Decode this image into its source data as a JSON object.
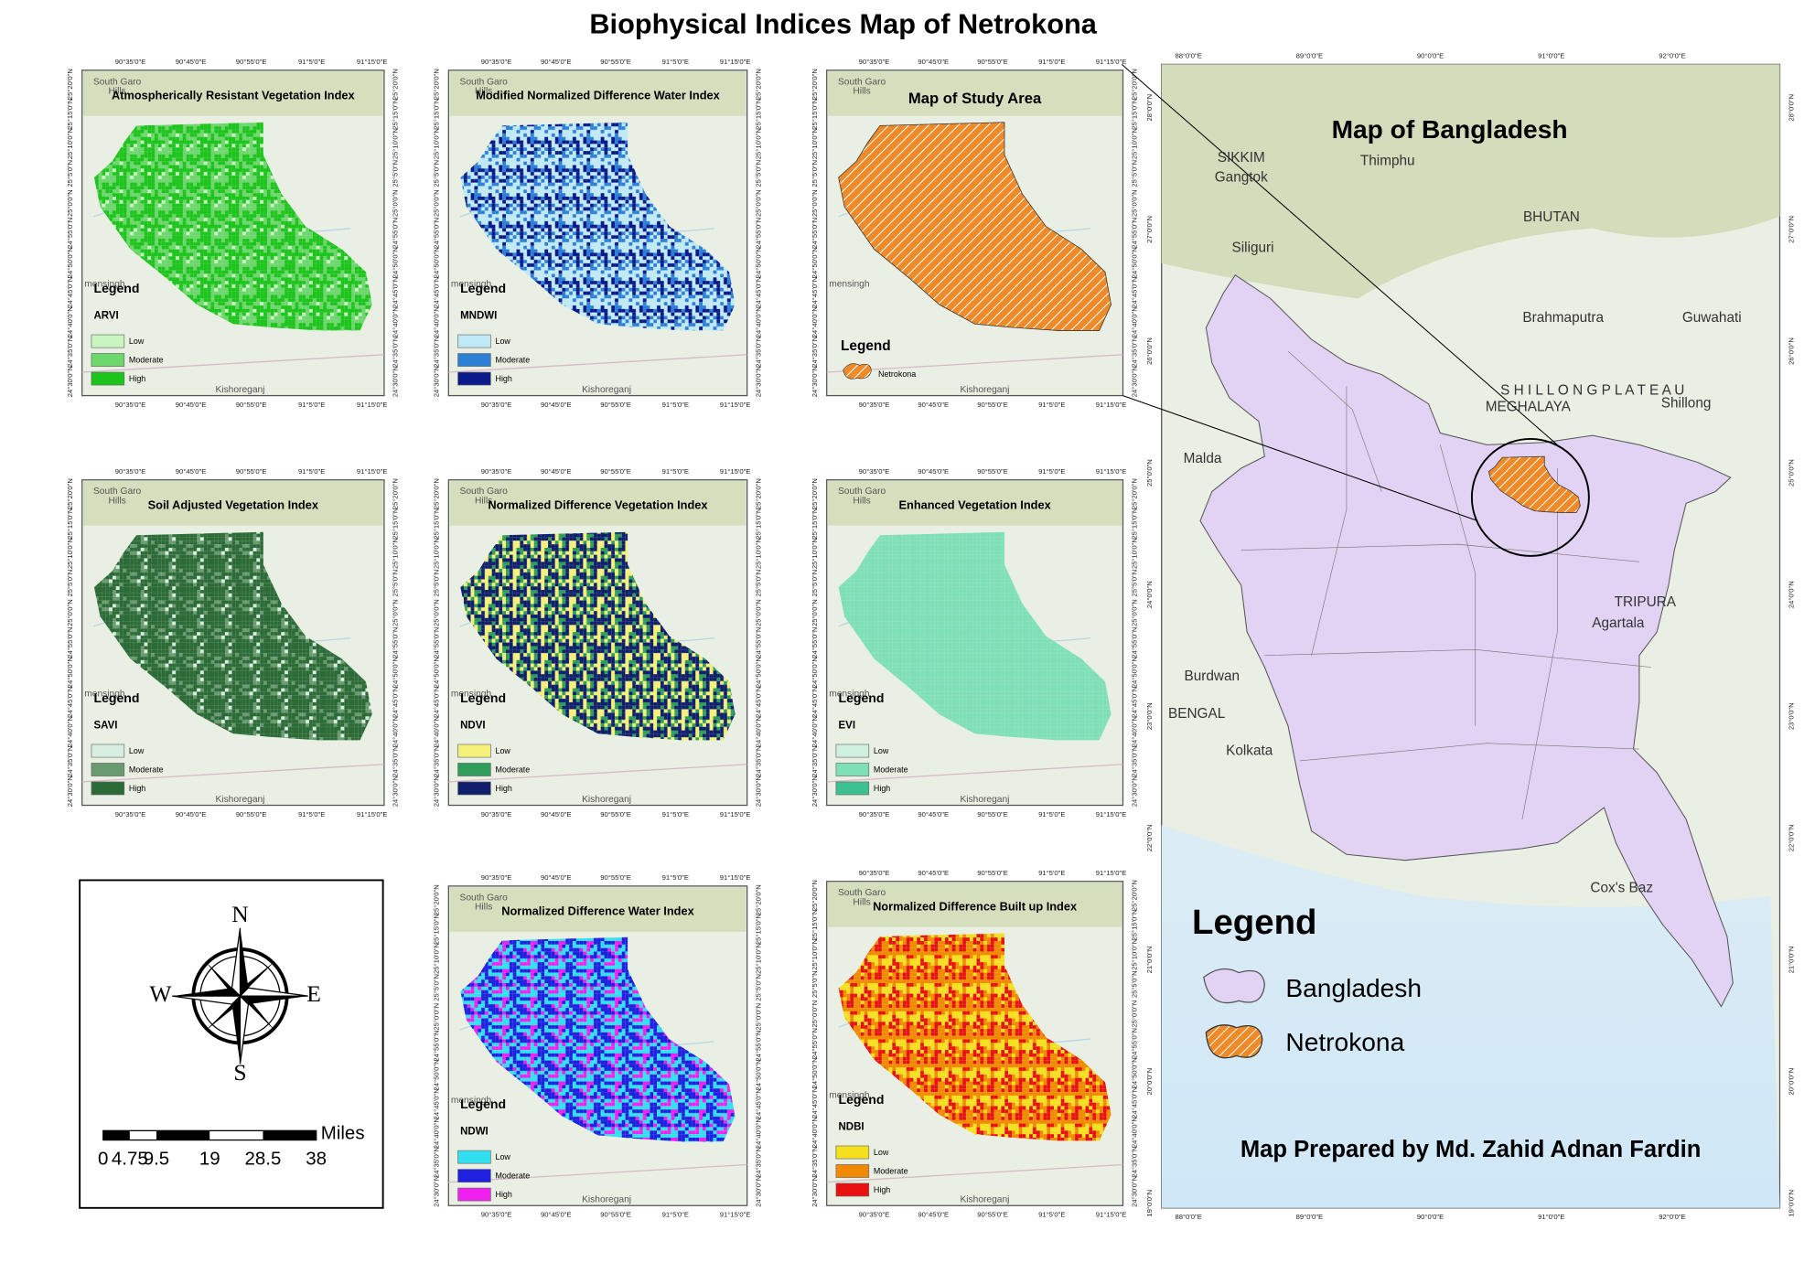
{
  "title": "Biophysical Indices Map of Netrokona",
  "panel_lon_labels": [
    "90°35'0\"E",
    "90°45'0\"E",
    "90°55'0\"E",
    "91°5'0\"E",
    "91°15'0\"E"
  ],
  "panel_lat_labels": [
    "25°20'0\"N",
    "25°15'0\"N",
    "25°10'0\"N",
    "25°5'0\"N",
    "25°0'0\"N",
    "24°55'0\"N",
    "24°50'0\"N",
    "24°45'0\"N",
    "24°40'0\"N",
    "24°35'0\"N",
    "24°30'0\"N"
  ],
  "panel_places": [
    "South Garo",
    "Hills",
    "mensingh",
    "Kishoreganj"
  ],
  "legend_title": "Legend",
  "panels": [
    {
      "title": "Atmospherically Resistant Vegetation Index",
      "index": "ARVI",
      "classes": [
        {
          "label": "Low",
          "color": "#c8f5c0"
        },
        {
          "label": "Moderate",
          "color": "#6dd66d"
        },
        {
          "label": "High",
          "color": "#1cc41c"
        }
      ]
    },
    {
      "title": "Modified Normalized Difference Water Index",
      "index": "MNDWI",
      "classes": [
        {
          "label": "Low",
          "color": "#bfe9f5"
        },
        {
          "label": "Moderate",
          "color": "#2e7fd6"
        },
        {
          "label": "High",
          "color": "#0a1a8a"
        }
      ]
    },
    {
      "title": "Soil Adjusted Vegetation Index",
      "index": "SAVI",
      "classes": [
        {
          "label": "Low",
          "color": "#d8eee0"
        },
        {
          "label": "Moderate",
          "color": "#6a9a70"
        },
        {
          "label": "High",
          "color": "#2c6b38"
        }
      ]
    },
    {
      "title": "Normalized Difference Vegetation Index",
      "index": "NDVI",
      "classes": [
        {
          "label": "Low",
          "color": "#f5f07a"
        },
        {
          "label": "Moderate",
          "color": "#2f9e5a"
        },
        {
          "label": "High",
          "color": "#101f6b"
        }
      ]
    },
    {
      "title": "Enhanced Vegetation Index",
      "index": "EVI",
      "classes": [
        {
          "label": "Low",
          "color": "#d0f0e0"
        },
        {
          "label": "Moderate",
          "color": "#7fe0b8"
        },
        {
          "label": "High",
          "color": "#3cc08f"
        }
      ]
    },
    {
      "title": "Normalized Difference Water Index",
      "index": "NDWI",
      "classes": [
        {
          "label": "Low",
          "color": "#30e0f0"
        },
        {
          "label": "Moderate",
          "color": "#2020e0"
        },
        {
          "label": "High",
          "color": "#f020f0"
        }
      ]
    },
    {
      "title": "Normalized Difference Built up Index",
      "index": "NDBI",
      "classes": [
        {
          "label": "Low",
          "color": "#f5e020"
        },
        {
          "label": "Moderate",
          "color": "#f08a00"
        },
        {
          "label": "High",
          "color": "#e81010"
        }
      ]
    }
  ],
  "study_area": {
    "title": "Map of Study Area",
    "item": "Netrokona",
    "color": "#f08a28"
  },
  "compass": {
    "n": "N",
    "s": "S",
    "e": "E",
    "w": "W"
  },
  "scale_bar": {
    "values": [
      0,
      4.75,
      9.5,
      19,
      28.5,
      38
    ],
    "unit": "Miles"
  },
  "bangladesh": {
    "title": "Map of Bangladesh",
    "lon_labels": [
      "88°0'0\"E",
      "89°0'0\"E",
      "90°0'0\"E",
      "91°0'0\"E",
      "92°0'0\"E"
    ],
    "lat_labels": [
      "28°0'0\"N",
      "27°0'0\"N",
      "26°0'0\"N",
      "25°0'0\"N",
      "24°0'0\"N",
      "23°0'0\"N",
      "22°0'0\"N",
      "21°0'0\"N",
      "20°0'0\"N",
      "19°0'0\"N"
    ],
    "places": [
      "Thimphu",
      "SIKKIM",
      "Gangtok",
      "BHUTAN",
      "Siliguri",
      "Guwahati",
      "Brahmaputra",
      "S H I L L O N G   P L A T E A U",
      "MEGHALAYA",
      "Shillong",
      "Malda",
      "TRIPURA",
      "Agartala",
      "Burdwan",
      "BENGAL",
      "Kolkata",
      "Cox's Baz"
    ],
    "legend_title": "Legend",
    "legend_items": [
      {
        "label": "Bangladesh",
        "color": "#e2d3f5"
      },
      {
        "label": "Netrokona",
        "color": "#f08a28"
      }
    ],
    "credit": "Map Prepared by Md. Zahid Adnan Fardin"
  }
}
